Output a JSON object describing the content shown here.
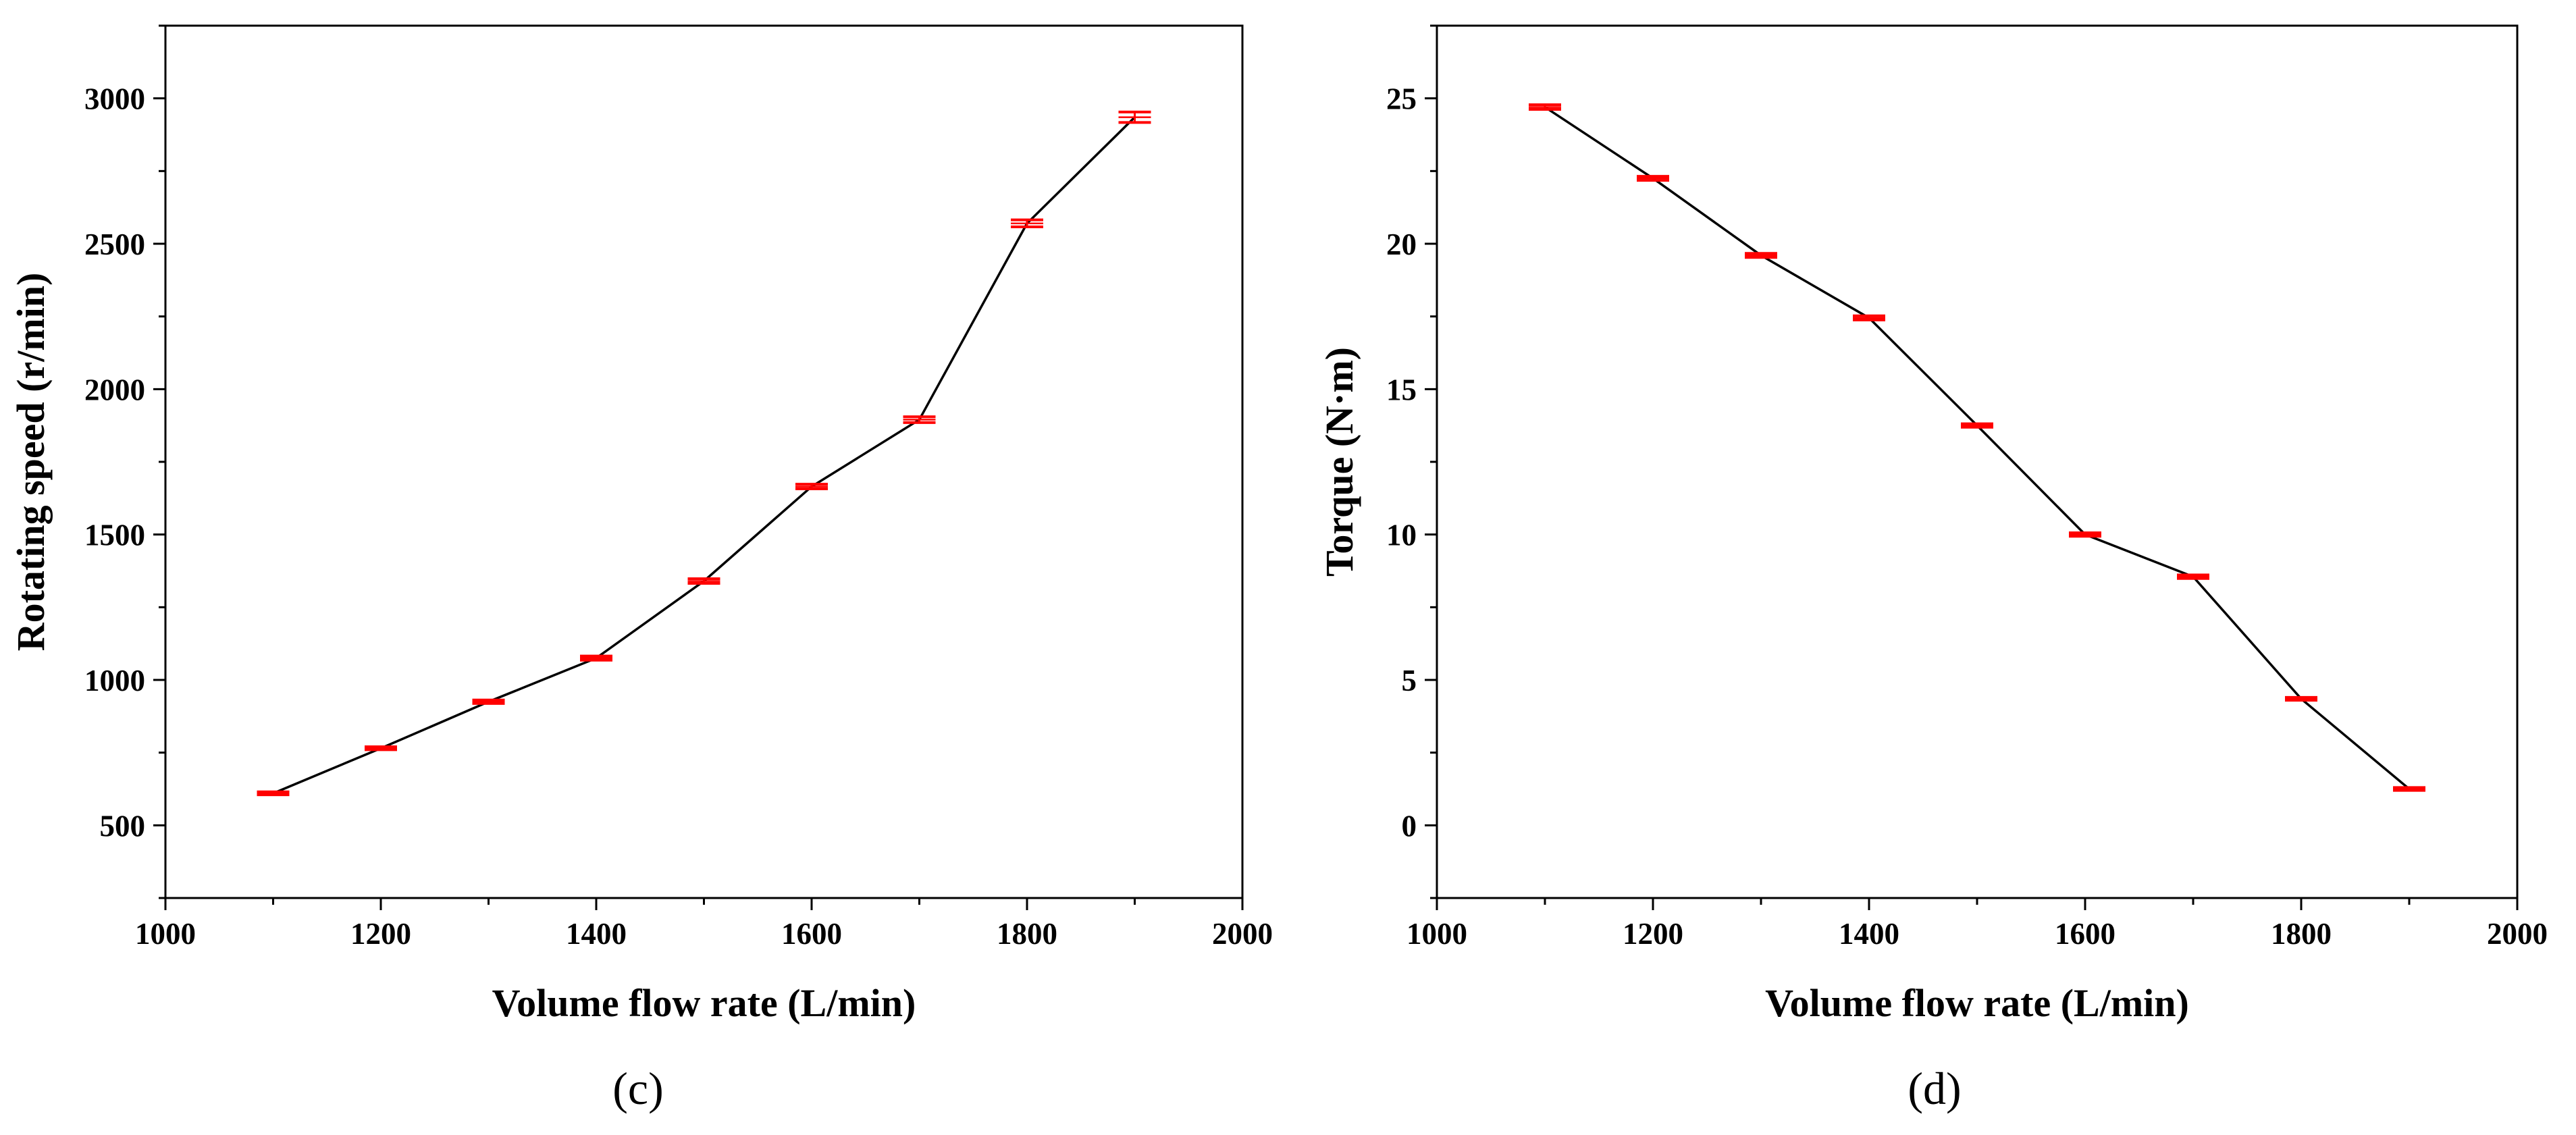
{
  "chart_data": [
    {
      "panel_label": "(c)",
      "type": "line",
      "title": "",
      "xlabel": "Volume flow rate (L/min)",
      "ylabel": "Rotating speed (r/min)",
      "xlim": [
        1000,
        2000
      ],
      "ylim": [
        250,
        3250
      ],
      "xticks": [
        "1000",
        "1200",
        "1400",
        "1600",
        "1800",
        "2000"
      ],
      "yticks": [
        "500",
        "1000",
        "1500",
        "2000",
        "2500",
        "3000"
      ],
      "grid": false,
      "line_color": "#000000",
      "errorbar_color": "#ff0000",
      "x": [
        1100,
        1200,
        1300,
        1400,
        1500,
        1600,
        1700,
        1800,
        1900
      ],
      "y": [
        610,
        765,
        925,
        1075,
        1340,
        1665,
        1895,
        2570,
        2935
      ],
      "error": [
        5,
        5,
        6,
        7,
        8,
        8,
        10,
        12,
        18
      ]
    },
    {
      "panel_label": "(d)",
      "type": "line",
      "title": "",
      "xlabel": "Volume flow rate (L/min)",
      "ylabel": "Torque (N·m)",
      "xlim": [
        1000,
        2000
      ],
      "ylim": [
        -2.5,
        27.5
      ],
      "xticks": [
        "1000",
        "1200",
        "1400",
        "1600",
        "1800",
        "2000"
      ],
      "yticks": [
        "0",
        "5",
        "10",
        "15",
        "20",
        "25"
      ],
      "grid": false,
      "line_color": "#000000",
      "errorbar_color": "#ff0000",
      "x": [
        1100,
        1200,
        1300,
        1400,
        1500,
        1600,
        1700,
        1800,
        1900
      ],
      "y": [
        24.7,
        22.25,
        19.6,
        17.45,
        13.75,
        10.0,
        8.55,
        4.35,
        1.25
      ],
      "error": [
        0.08,
        0.07,
        0.07,
        0.07,
        0.06,
        0.06,
        0.06,
        0.05,
        0.05
      ]
    }
  ]
}
